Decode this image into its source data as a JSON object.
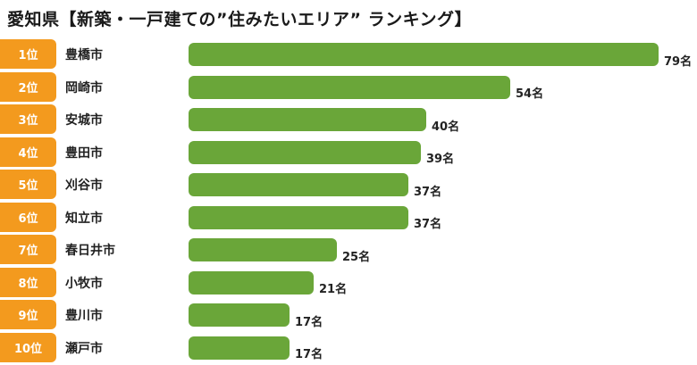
{
  "title": "愛知県【新築・一戸建ての”住みたいエリア” ランキング】",
  "colors": {
    "rank_badge": "#f39a1e",
    "bar": "#6aa639",
    "text": "#222222"
  },
  "rows": [
    {
      "rank": "1位",
      "city": "豊橋市",
      "value": 79,
      "label": "79名"
    },
    {
      "rank": "2位",
      "city": "岡崎市",
      "value": 54,
      "label": "54名"
    },
    {
      "rank": "3位",
      "city": "安城市",
      "value": 40,
      "label": "40名"
    },
    {
      "rank": "4位",
      "city": "豊田市",
      "value": 39,
      "label": "39名"
    },
    {
      "rank": "5位",
      "city": "刈谷市",
      "value": 37,
      "label": "37名"
    },
    {
      "rank": "6位",
      "city": "知立市",
      "value": 37,
      "label": "37名"
    },
    {
      "rank": "7位",
      "city": "春日井市",
      "value": 25,
      "label": "25名"
    },
    {
      "rank": "8位",
      "city": "小牧市",
      "value": 21,
      "label": "21名"
    },
    {
      "rank": "9位",
      "city": "豊川市",
      "value": 17,
      "label": "17名"
    },
    {
      "rank": "10位",
      "city": "瀬戸市",
      "value": 17,
      "label": "17名"
    }
  ],
  "chart_data": {
    "type": "bar",
    "orientation": "horizontal",
    "title": "愛知県【新築・一戸建ての”住みたいエリア” ランキング】",
    "categories": [
      "豊橋市",
      "岡崎市",
      "安城市",
      "豊田市",
      "刈谷市",
      "知立市",
      "春日井市",
      "小牧市",
      "豊川市",
      "瀬戸市"
    ],
    "ranks": [
      "1位",
      "2位",
      "3位",
      "4位",
      "5位",
      "6位",
      "7位",
      "8位",
      "9位",
      "10位"
    ],
    "values": [
      79,
      54,
      40,
      39,
      37,
      37,
      25,
      21,
      17,
      17
    ],
    "value_labels": [
      "79名",
      "54名",
      "40名",
      "39名",
      "37名",
      "37名",
      "25名",
      "21名",
      "17名",
      "17名"
    ],
    "unit": "名",
    "xlabel": "",
    "ylabel": "",
    "grid": false,
    "legend": "none"
  }
}
